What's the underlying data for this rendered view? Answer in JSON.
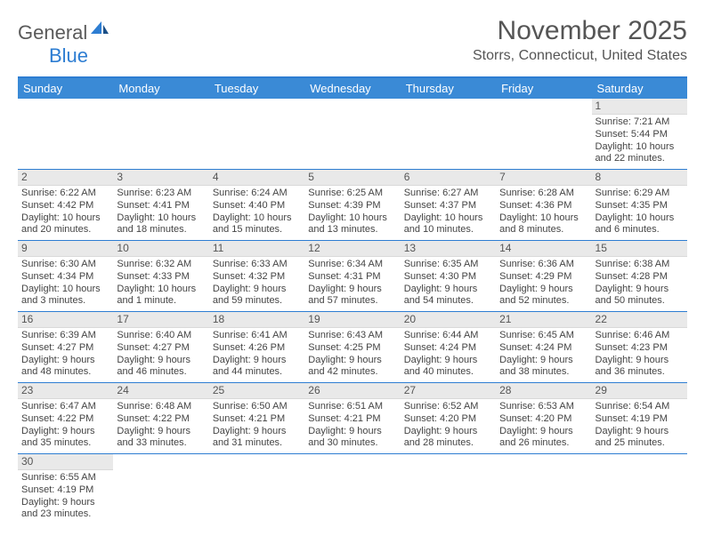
{
  "brand": {
    "part1": "General",
    "part2": "Blue"
  },
  "title": "November 2025",
  "location": "Storrs, Connecticut, United States",
  "colors": {
    "header_bg": "#3a8ad6",
    "border": "#2d7dd2",
    "daynum_bg": "#e9e9e9",
    "text": "#444444",
    "title_text": "#555555"
  },
  "dow": [
    "Sunday",
    "Monday",
    "Tuesday",
    "Wednesday",
    "Thursday",
    "Friday",
    "Saturday"
  ],
  "weeks": [
    [
      {
        "n": "",
        "t": "",
        "empty": true
      },
      {
        "n": "",
        "t": "",
        "empty": true
      },
      {
        "n": "",
        "t": "",
        "empty": true
      },
      {
        "n": "",
        "t": "",
        "empty": true
      },
      {
        "n": "",
        "t": "",
        "empty": true
      },
      {
        "n": "",
        "t": "",
        "empty": true
      },
      {
        "n": "1",
        "t": "Sunrise: 7:21 AM\nSunset: 5:44 PM\nDaylight: 10 hours and 22 minutes."
      }
    ],
    [
      {
        "n": "2",
        "t": "Sunrise: 6:22 AM\nSunset: 4:42 PM\nDaylight: 10 hours and 20 minutes."
      },
      {
        "n": "3",
        "t": "Sunrise: 6:23 AM\nSunset: 4:41 PM\nDaylight: 10 hours and 18 minutes."
      },
      {
        "n": "4",
        "t": "Sunrise: 6:24 AM\nSunset: 4:40 PM\nDaylight: 10 hours and 15 minutes."
      },
      {
        "n": "5",
        "t": "Sunrise: 6:25 AM\nSunset: 4:39 PM\nDaylight: 10 hours and 13 minutes."
      },
      {
        "n": "6",
        "t": "Sunrise: 6:27 AM\nSunset: 4:37 PM\nDaylight: 10 hours and 10 minutes."
      },
      {
        "n": "7",
        "t": "Sunrise: 6:28 AM\nSunset: 4:36 PM\nDaylight: 10 hours and 8 minutes."
      },
      {
        "n": "8",
        "t": "Sunrise: 6:29 AM\nSunset: 4:35 PM\nDaylight: 10 hours and 6 minutes."
      }
    ],
    [
      {
        "n": "9",
        "t": "Sunrise: 6:30 AM\nSunset: 4:34 PM\nDaylight: 10 hours and 3 minutes."
      },
      {
        "n": "10",
        "t": "Sunrise: 6:32 AM\nSunset: 4:33 PM\nDaylight: 10 hours and 1 minute."
      },
      {
        "n": "11",
        "t": "Sunrise: 6:33 AM\nSunset: 4:32 PM\nDaylight: 9 hours and 59 minutes."
      },
      {
        "n": "12",
        "t": "Sunrise: 6:34 AM\nSunset: 4:31 PM\nDaylight: 9 hours and 57 minutes."
      },
      {
        "n": "13",
        "t": "Sunrise: 6:35 AM\nSunset: 4:30 PM\nDaylight: 9 hours and 54 minutes."
      },
      {
        "n": "14",
        "t": "Sunrise: 6:36 AM\nSunset: 4:29 PM\nDaylight: 9 hours and 52 minutes."
      },
      {
        "n": "15",
        "t": "Sunrise: 6:38 AM\nSunset: 4:28 PM\nDaylight: 9 hours and 50 minutes."
      }
    ],
    [
      {
        "n": "16",
        "t": "Sunrise: 6:39 AM\nSunset: 4:27 PM\nDaylight: 9 hours and 48 minutes."
      },
      {
        "n": "17",
        "t": "Sunrise: 6:40 AM\nSunset: 4:27 PM\nDaylight: 9 hours and 46 minutes."
      },
      {
        "n": "18",
        "t": "Sunrise: 6:41 AM\nSunset: 4:26 PM\nDaylight: 9 hours and 44 minutes."
      },
      {
        "n": "19",
        "t": "Sunrise: 6:43 AM\nSunset: 4:25 PM\nDaylight: 9 hours and 42 minutes."
      },
      {
        "n": "20",
        "t": "Sunrise: 6:44 AM\nSunset: 4:24 PM\nDaylight: 9 hours and 40 minutes."
      },
      {
        "n": "21",
        "t": "Sunrise: 6:45 AM\nSunset: 4:24 PM\nDaylight: 9 hours and 38 minutes."
      },
      {
        "n": "22",
        "t": "Sunrise: 6:46 AM\nSunset: 4:23 PM\nDaylight: 9 hours and 36 minutes."
      }
    ],
    [
      {
        "n": "23",
        "t": "Sunrise: 6:47 AM\nSunset: 4:22 PM\nDaylight: 9 hours and 35 minutes."
      },
      {
        "n": "24",
        "t": "Sunrise: 6:48 AM\nSunset: 4:22 PM\nDaylight: 9 hours and 33 minutes."
      },
      {
        "n": "25",
        "t": "Sunrise: 6:50 AM\nSunset: 4:21 PM\nDaylight: 9 hours and 31 minutes."
      },
      {
        "n": "26",
        "t": "Sunrise: 6:51 AM\nSunset: 4:21 PM\nDaylight: 9 hours and 30 minutes."
      },
      {
        "n": "27",
        "t": "Sunrise: 6:52 AM\nSunset: 4:20 PM\nDaylight: 9 hours and 28 minutes."
      },
      {
        "n": "28",
        "t": "Sunrise: 6:53 AM\nSunset: 4:20 PM\nDaylight: 9 hours and 26 minutes."
      },
      {
        "n": "29",
        "t": "Sunrise: 6:54 AM\nSunset: 4:19 PM\nDaylight: 9 hours and 25 minutes."
      }
    ],
    [
      {
        "n": "30",
        "t": "Sunrise: 6:55 AM\nSunset: 4:19 PM\nDaylight: 9 hours and 23 minutes."
      },
      {
        "n": "",
        "t": "",
        "empty": true
      },
      {
        "n": "",
        "t": "",
        "empty": true
      },
      {
        "n": "",
        "t": "",
        "empty": true
      },
      {
        "n": "",
        "t": "",
        "empty": true
      },
      {
        "n": "",
        "t": "",
        "empty": true
      },
      {
        "n": "",
        "t": "",
        "empty": true
      }
    ]
  ]
}
